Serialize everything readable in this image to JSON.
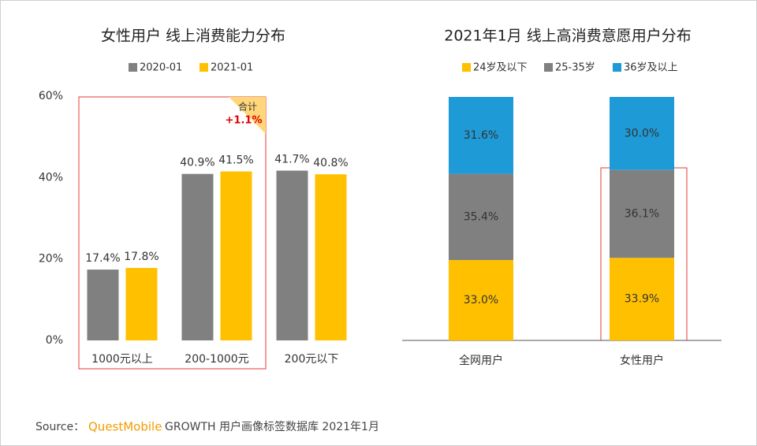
{
  "chart_data": [
    {
      "type": "bar",
      "title": "女性用户 线上消费能力分布",
      "categories": [
        "1000元以上",
        "200-1000元",
        "200元以下"
      ],
      "series": [
        {
          "name": "2020-01",
          "color": "#808080",
          "values": [
            17.4,
            40.9,
            41.7
          ],
          "value_labels": [
            "17.4%",
            "40.9%",
            "41.7%"
          ]
        },
        {
          "name": "2021-01",
          "color": "#ffc000",
          "values": [
            17.8,
            41.5,
            40.8
          ],
          "value_labels": [
            "17.8%",
            "41.5%",
            "40.8%"
          ]
        }
      ],
      "ylim": [
        0,
        60
      ],
      "yticks": [
        {
          "value": 0,
          "label": "0%"
        },
        {
          "value": 20,
          "label": "20%"
        },
        {
          "value": 40,
          "label": "40%"
        },
        {
          "value": 60,
          "label": "60%"
        }
      ],
      "annotation": {
        "label": "合计",
        "value": "+1.1%"
      }
    },
    {
      "type": "stacked_bar",
      "title": "2021年1月 线上高消费意愿用户分布",
      "categories": [
        "全网用户",
        "女性用户"
      ],
      "series": [
        {
          "name": "24岁及以下",
          "color": "#ffc000",
          "values": [
            33.0,
            33.9
          ],
          "value_labels": [
            "33.0%",
            "33.9%"
          ]
        },
        {
          "name": "25-35岁",
          "color": "#808080",
          "values": [
            35.4,
            36.1
          ],
          "value_labels": [
            "35.4%",
            "36.1%"
          ]
        },
        {
          "name": "36岁及以上",
          "color": "#1e9ad6",
          "values": [
            31.6,
            30.0
          ],
          "value_labels": [
            "31.6%",
            "30.0%"
          ]
        }
      ],
      "ylim": [
        0,
        100
      ]
    }
  ],
  "source": {
    "label": "Source：",
    "brand": "QuestMobile",
    "text": "GROWTH 用户画像标签数据库 2021年1月"
  }
}
